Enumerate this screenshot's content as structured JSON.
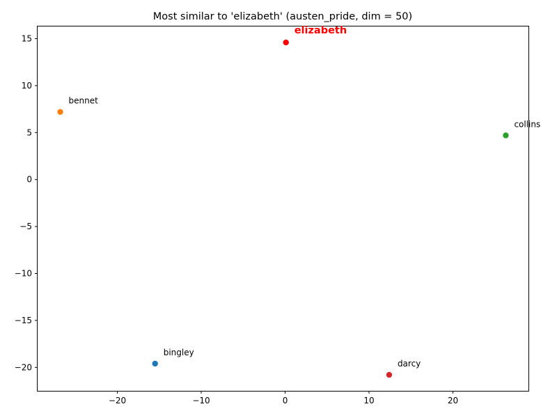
{
  "chart_data": {
    "type": "scatter",
    "title": "Most similar to 'elizabeth' (austen_pride, dim = 50)",
    "xlabel": "",
    "ylabel": "",
    "xlim": [
      -29.5,
      29.0
    ],
    "ylim": [
      -22.5,
      16.3
    ],
    "grid": false,
    "x_ticks": [
      -20,
      -10,
      0,
      10,
      20
    ],
    "y_ticks": [
      -20,
      -15,
      -10,
      -5,
      0,
      5,
      10,
      15
    ],
    "x_tick_labels": [
      "−20",
      "−10",
      "0",
      "10",
      "20"
    ],
    "y_tick_labels": [
      "−20",
      "−15",
      "−10",
      "−5",
      "0",
      "5",
      "10",
      "15"
    ],
    "points": [
      {
        "label": "elizabeth",
        "x": 0.1,
        "y": 14.6,
        "color": "#ff0000",
        "highlight": true
      },
      {
        "label": "bingley",
        "x": -15.5,
        "y": -19.6,
        "color": "#1f77b4",
        "highlight": false
      },
      {
        "label": "bennet",
        "x": -26.8,
        "y": 7.2,
        "color": "#ff7f0e",
        "highlight": false
      },
      {
        "label": "collins",
        "x": 26.3,
        "y": 4.7,
        "color": "#2ca02c",
        "highlight": false
      },
      {
        "label": "darcy",
        "x": 12.4,
        "y": -20.8,
        "color": "#d62728",
        "highlight": false
      }
    ]
  }
}
